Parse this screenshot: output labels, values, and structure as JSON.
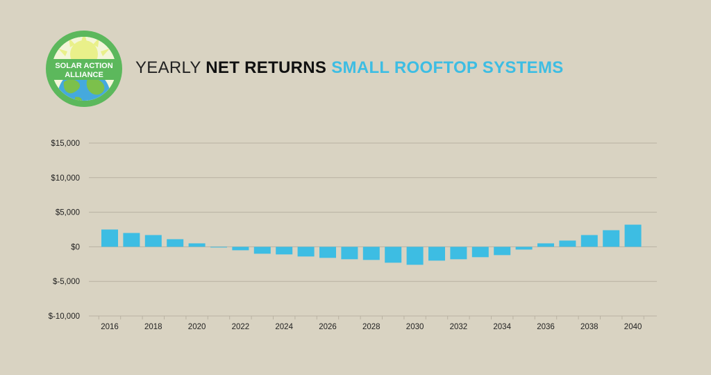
{
  "logo": {
    "line1": "SOLAR ACTION",
    "line2": "ALLIANCE",
    "ring_color": "#5cb85c",
    "sun_color": "#e9f08a",
    "globe_color": "#45a9dd",
    "land_color": "#7cc04b"
  },
  "title": {
    "part1": "YEARLY",
    "part2": "NET RETURNS",
    "part3": "SMALL ROOFTOP SYSTEMS"
  },
  "colors": {
    "background": "#d9d3c2",
    "bar": "#3dbde3",
    "grid": "#b9b2a2"
  },
  "chart_data": {
    "type": "bar",
    "categories": [
      "2016",
      "2017",
      "2018",
      "2019",
      "2020",
      "2021",
      "2022",
      "2023",
      "2024",
      "2025",
      "2026",
      "2027",
      "2028",
      "2029",
      "2030",
      "2031",
      "2032",
      "2033",
      "2034",
      "2035",
      "2036",
      "2037",
      "2038",
      "2039",
      "2040"
    ],
    "values": [
      2500,
      2000,
      1700,
      1100,
      500,
      -100,
      -500,
      -1000,
      -1100,
      -1400,
      -1600,
      -1800,
      -1900,
      -2300,
      -2600,
      -2000,
      -1800,
      -1500,
      -1200,
      -400,
      500,
      900,
      1700,
      2400,
      3200
    ],
    "x_tick_labels": [
      "2016",
      "2018",
      "2020",
      "2022",
      "2024",
      "2026",
      "2028",
      "2030",
      "2032",
      "2034",
      "2036",
      "2038",
      "2040"
    ],
    "y_ticks": [
      15000,
      10000,
      5000,
      0,
      -5000,
      -10000
    ],
    "y_tick_labels": [
      "$15,000",
      "$10,000",
      "$5,000",
      "$0",
      "$-5,000",
      "$-10,000"
    ],
    "ylim": [
      -10000,
      15000
    ],
    "grid": true,
    "legend": "none"
  }
}
